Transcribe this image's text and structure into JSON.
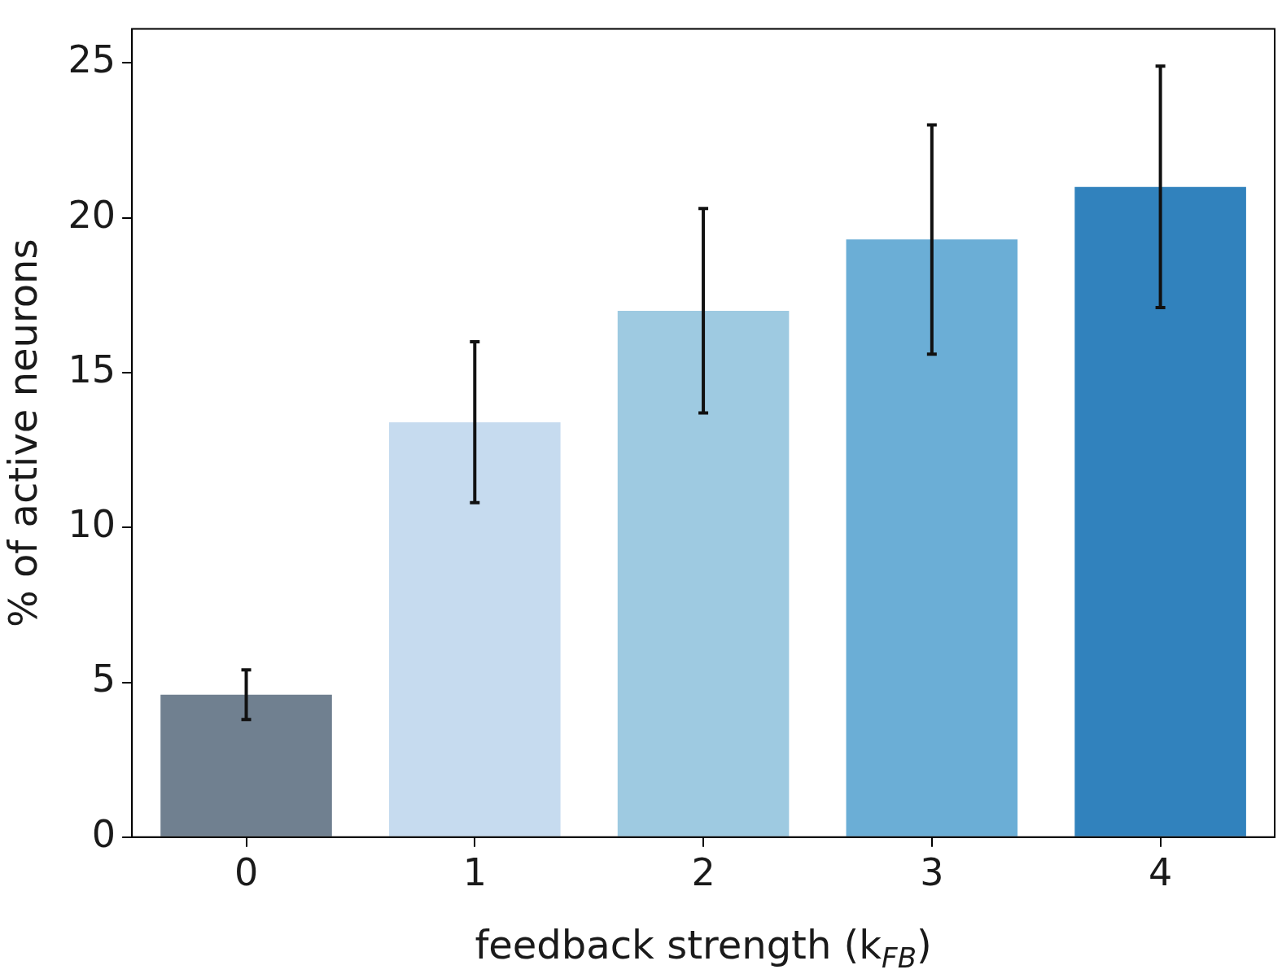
{
  "chart_data": {
    "type": "bar",
    "xlabel": "feedback strength (k$_{FB}$)",
    "ylabel": "% of active neurons",
    "categories": [
      "0",
      "1",
      "2",
      "3",
      "4"
    ],
    "values": [
      4.6,
      13.4,
      17.0,
      19.3,
      21.0
    ],
    "errors": [
      0.8,
      2.6,
      3.3,
      3.7,
      3.9
    ],
    "colors": [
      "#708090",
      "#c6dbef",
      "#9ecae1",
      "#6baed6",
      "#3182bd"
    ],
    "ylim": [
      0,
      26.1
    ],
    "yticks": [
      0,
      5,
      10,
      15,
      20,
      25
    ],
    "grid": false,
    "legend": false
  }
}
